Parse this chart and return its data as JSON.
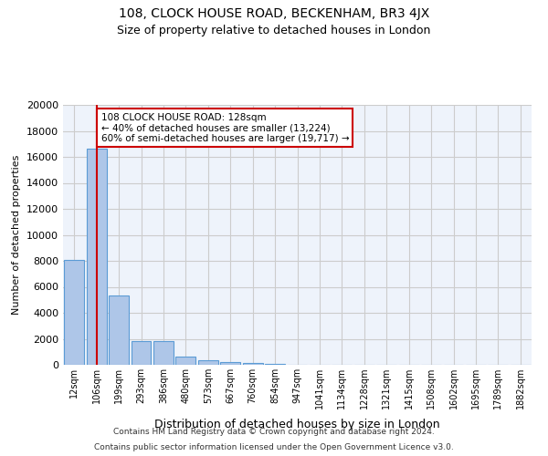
{
  "title1": "108, CLOCK HOUSE ROAD, BECKENHAM, BR3 4JX",
  "title2": "Size of property relative to detached houses in London",
  "xlabel": "Distribution of detached houses by size in London",
  "ylabel": "Number of detached properties",
  "footer1": "Contains HM Land Registry data © Crown copyright and database right 2024.",
  "footer2": "Contains public sector information licensed under the Open Government Licence v3.0.",
  "bin_labels": [
    "12sqm",
    "106sqm",
    "199sqm",
    "293sqm",
    "386sqm",
    "480sqm",
    "573sqm",
    "667sqm",
    "760sqm",
    "854sqm",
    "947sqm",
    "1041sqm",
    "1134sqm",
    "1228sqm",
    "1321sqm",
    "1415sqm",
    "1508sqm",
    "1602sqm",
    "1695sqm",
    "1789sqm",
    "1882sqm"
  ],
  "bar_values": [
    8100,
    16600,
    5300,
    1800,
    1800,
    650,
    350,
    200,
    150,
    100,
    0,
    0,
    0,
    0,
    0,
    0,
    0,
    0,
    0,
    0,
    0
  ],
  "bar_color": "#aec6e8",
  "bar_edge_color": "#5b9bd5",
  "property_bin_index": 1,
  "annotation_text": "108 CLOCK HOUSE ROAD: 128sqm\n← 40% of detached houses are smaller (13,224)\n60% of semi-detached houses are larger (19,717) →",
  "annotation_box_color": "#ffffff",
  "annotation_box_edge_color": "#cc0000",
  "vline_color": "#cc0000",
  "ylim": [
    0,
    20000
  ],
  "yticks": [
    0,
    2000,
    4000,
    6000,
    8000,
    10000,
    12000,
    14000,
    16000,
    18000,
    20000
  ],
  "grid_color": "#cccccc",
  "plot_bg_color": "#eef3fb"
}
